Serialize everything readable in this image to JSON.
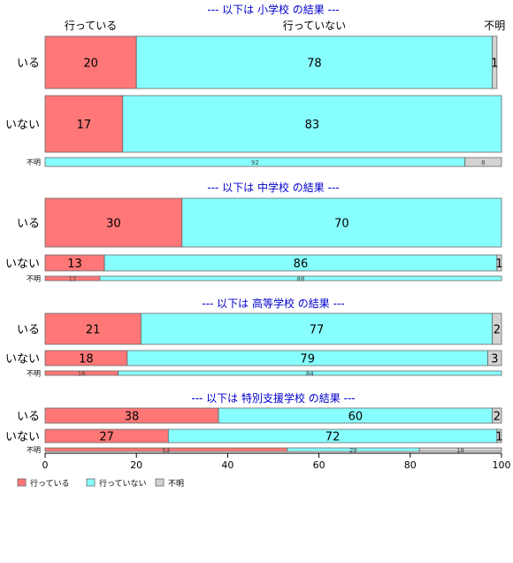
{
  "chart_data": {
    "type": "bar",
    "orientation": "horizontal",
    "stacked": true,
    "xlim": [
      0,
      100
    ],
    "x_ticks": [
      "0",
      "20",
      "40",
      "60",
      "80",
      "100"
    ],
    "column_labels": [
      "行っている",
      "行っていない",
      "不明"
    ],
    "legend": {
      "placement": "bottom-left",
      "entries": [
        "行っている",
        "行っていない",
        "不明"
      ]
    },
    "colors": {
      "行っている": "#ff7777",
      "行っていない": "#88ffff",
      "不明": "#d3d3d3",
      "title": "#0000cc"
    },
    "groups": [
      {
        "title": "--- 以下は 小学校 の結果 ---",
        "rows": [
          {
            "label": "いる",
            "values": [
              20,
              78,
              1
            ]
          },
          {
            "label": "いない",
            "values": [
              17,
              83,
              1
            ]
          },
          {
            "label": "不明",
            "values": [
              0,
              92,
              8
            ]
          }
        ]
      },
      {
        "title": "--- 以下は 中学校 の結果 ---",
        "rows": [
          {
            "label": "いる",
            "values": [
              30,
              70,
              1
            ]
          },
          {
            "label": "いない",
            "values": [
              13,
              86,
              1
            ]
          },
          {
            "label": "不明",
            "values": [
              12,
              88,
              0
            ]
          }
        ]
      },
      {
        "title": "--- 以下は 高等学校 の結果 ---",
        "rows": [
          {
            "label": "いる",
            "values": [
              21,
              77,
              2
            ]
          },
          {
            "label": "いない",
            "values": [
              18,
              79,
              3
            ]
          },
          {
            "label": "不明",
            "values": [
              16,
              84,
              0
            ]
          }
        ]
      },
      {
        "title": "--- 以下は 特別支援学校 の結果 ---",
        "rows": [
          {
            "label": "いる",
            "values": [
              38,
              60,
              2
            ]
          },
          {
            "label": "いない",
            "values": [
              27,
              72,
              1
            ]
          },
          {
            "label": "不明",
            "values": [
              53,
              29,
              18
            ]
          }
        ]
      }
    ]
  }
}
